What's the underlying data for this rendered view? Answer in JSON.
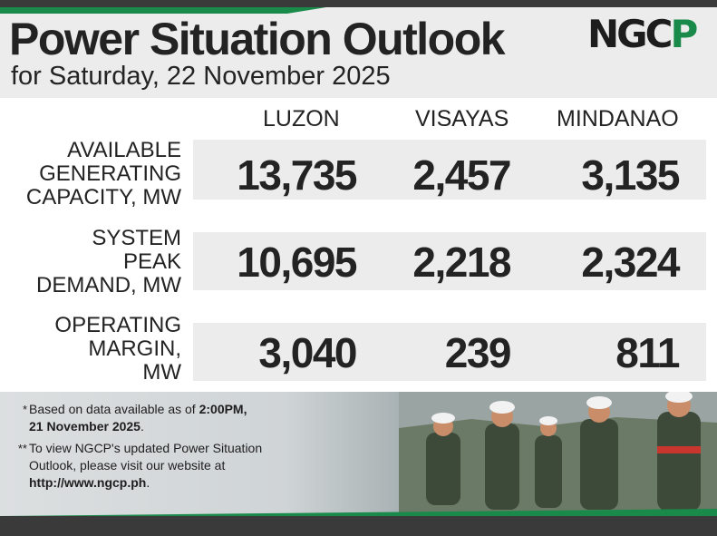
{
  "header": {
    "title": "Power Situation Outlook",
    "subtitle": "for Saturday, 22 November 2025",
    "logo_text_a": "NGC",
    "logo_text_b": "P"
  },
  "columns": [
    "LUZON",
    "VISAYAS",
    "MINDANAO"
  ],
  "rows": [
    {
      "label_lines": [
        "AVAILABLE",
        "GENERATING",
        "CAPACITY, MW"
      ],
      "values": [
        "13,735",
        "2,457",
        "3,135"
      ]
    },
    {
      "label_lines": [
        "SYSTEM",
        "PEAK",
        "DEMAND, MW"
      ],
      "values": [
        "10,695",
        "2,218",
        "2,324"
      ]
    },
    {
      "label_lines": [
        "OPERATING",
        "MARGIN,",
        "MW"
      ],
      "values": [
        "3,040",
        "239",
        "811"
      ]
    }
  ],
  "notes": [
    {
      "marker": "*",
      "line1_pre": "Based on data available as of ",
      "line1_bold": "2:00PM,",
      "line2_bold": "21 November 2025",
      "line2_post": "."
    },
    {
      "marker": "**",
      "line1": "To view NGCP's updated Power Situation",
      "line2": "Outlook, please visit our website at",
      "line3_bold": "http://www.ngcp.ph",
      "line3_post": "."
    }
  ],
  "colors": {
    "brand_green": "#1a8a4a",
    "band_gray": "#ececec",
    "dark_bar": "#3a3a3a"
  }
}
